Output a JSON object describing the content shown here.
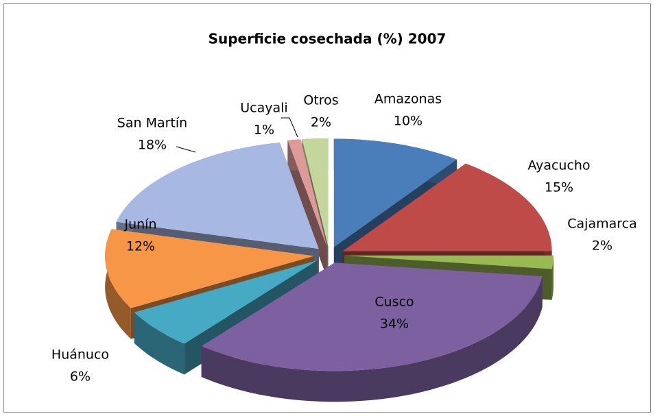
{
  "chart_data": {
    "type": "pie3d",
    "title": "Superficie cosechada (%)   2007",
    "categories": [
      "Amazonas",
      "Ayacucho",
      "Cajamarca",
      "Cusco",
      "Huánuco",
      "Junín",
      "San Martín",
      "Ucayali",
      "Otros"
    ],
    "values": [
      10,
      15,
      2,
      34,
      6,
      12,
      18,
      1,
      2
    ],
    "value_labels": [
      "10%",
      "15%",
      "2%",
      "34%",
      "6%",
      "12%",
      "18%",
      "1%",
      "2%"
    ],
    "colors": [
      "#4a7ebb",
      "#be4b48",
      "#98b954",
      "#7d60a0",
      "#46aac5",
      "#f79646",
      "#a7b9e3",
      "#dd9a99",
      "#c3d69b"
    ]
  }
}
